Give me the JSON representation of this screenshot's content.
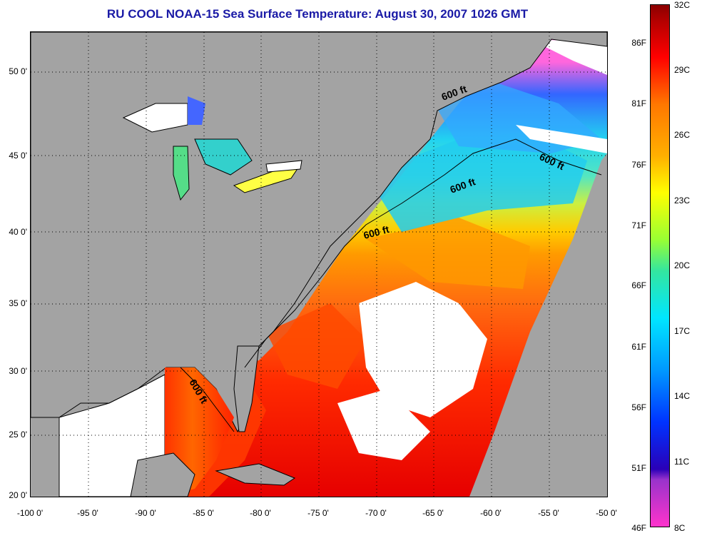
{
  "title": "RU COOL  NOAA-15  Sea Surface Temperature:  August 30, 2007 1026 GMT",
  "axes": {
    "lat_ticks": [
      "50 0'",
      "45 0'",
      "40 0'",
      "35 0'",
      "30 0'",
      "25 0'",
      "20 0'"
    ],
    "lon_ticks": [
      "-100 0'",
      "-95 0'",
      "-90 0'",
      "-85 0'",
      "-80 0'",
      "-75 0'",
      "-70 0'",
      "-65 0'",
      "-60 0'",
      "-55 0'",
      "-50 0'"
    ],
    "lat_range": [
      20,
      52.5
    ],
    "lon_range": [
      -100,
      -50
    ]
  },
  "contour_labels": [
    "600 ft",
    "600 ft",
    "600 ft",
    "600 ft",
    "600 ft"
  ],
  "colorbar": {
    "celsius": [
      "32C",
      "29C",
      "26C",
      "23C",
      "20C",
      "17C",
      "14C",
      "11C",
      "8C"
    ],
    "fahrenheit": [
      "86F",
      "81F",
      "76F",
      "71F",
      "66F",
      "61F",
      "56F",
      "51F",
      "46F"
    ],
    "range_c": [
      8,
      32
    ]
  },
  "colors": {
    "land": "#a3a3a3",
    "cloud": "#ffffff",
    "title": "#1a1aa6"
  }
}
